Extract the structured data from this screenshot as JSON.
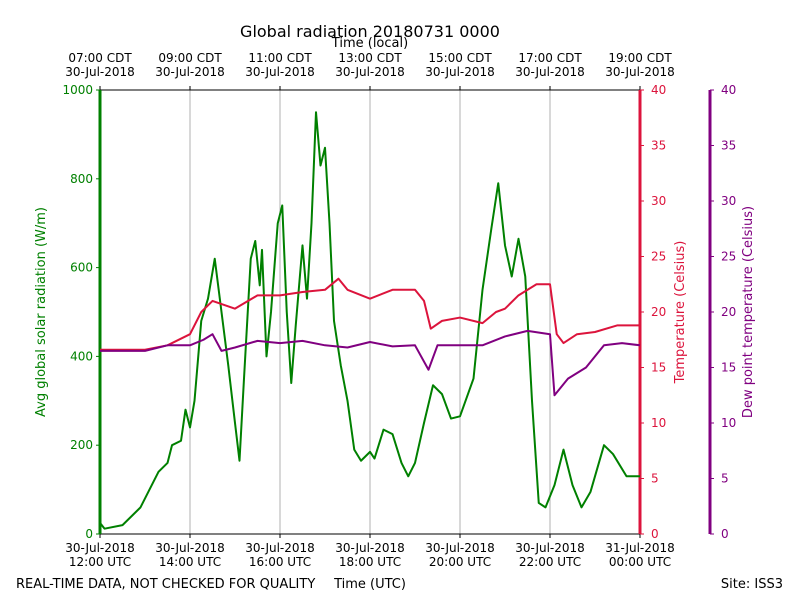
{
  "chart_data": {
    "type": "line",
    "title": "Global radiation 20180731 0000",
    "x2label": "Time (local)",
    "xlabel": "Time (UTC)",
    "ylabel": "Avg global solar radiation (W/m)",
    "y2label": "Temperature (Celsius)",
    "y3label": "Dew point temperature (Celsius)",
    "footer_left": "REAL-TIME DATA, NOT CHECKED FOR QUALITY",
    "footer_right": "Site: ISS3",
    "grid": true,
    "xlim": [
      12,
      24
    ],
    "xticks": [
      {
        "value": 12,
        "label": "30-Jul-2018\n12:00 UTC"
      },
      {
        "value": 14,
        "label": "30-Jul-2018\n14:00 UTC"
      },
      {
        "value": 16,
        "label": "30-Jul-2018\n16:00 UTC"
      },
      {
        "value": 18,
        "label": "30-Jul-2018\n18:00 UTC"
      },
      {
        "value": 20,
        "label": "30-Jul-2018\n20:00 UTC"
      },
      {
        "value": 22,
        "label": "30-Jul-2018\n22:00 UTC"
      },
      {
        "value": 24,
        "label": "31-Jul-2018\n00:00 UTC"
      }
    ],
    "x2ticks": [
      {
        "value": 12,
        "label": "07:00 CDT\n30-Jul-2018"
      },
      {
        "value": 14,
        "label": "09:00 CDT\n30-Jul-2018"
      },
      {
        "value": 16,
        "label": "11:00 CDT\n30-Jul-2018"
      },
      {
        "value": 18,
        "label": "13:00 CDT\n30-Jul-2018"
      },
      {
        "value": 20,
        "label": "15:00 CDT\n30-Jul-2018"
      },
      {
        "value": 22,
        "label": "17:00 CDT\n30-Jul-2018"
      },
      {
        "value": 24,
        "label": "19:00 CDT\n30-Jul-2018"
      }
    ],
    "ylim": [
      0,
      1000
    ],
    "yticks": [
      0,
      200,
      400,
      600,
      800,
      1000
    ],
    "y2lim": [
      0,
      40
    ],
    "y2ticks": [
      0,
      5,
      10,
      15,
      20,
      25,
      30,
      35,
      40
    ],
    "y3lim": [
      0,
      40
    ],
    "y3ticks": [
      0,
      5,
      10,
      15,
      20,
      25,
      30,
      35,
      40
    ],
    "series": [
      {
        "name": "Avg global solar radiation",
        "color": "#008000",
        "axis": "y",
        "x": [
          12.0,
          12.1,
          12.5,
          12.9,
          13.3,
          13.5,
          13.6,
          13.8,
          13.9,
          14.0,
          14.1,
          14.25,
          14.4,
          14.55,
          14.7,
          14.85,
          15.0,
          15.1,
          15.2,
          15.35,
          15.45,
          15.55,
          15.6,
          15.7,
          15.8,
          15.95,
          16.05,
          16.15,
          16.25,
          16.35,
          16.5,
          16.6,
          16.7,
          16.8,
          16.9,
          17.0,
          17.1,
          17.2,
          17.35,
          17.5,
          17.65,
          17.8,
          18.0,
          18.1,
          18.3,
          18.5,
          18.7,
          18.85,
          19.0,
          19.2,
          19.4,
          19.6,
          19.8,
          20.0,
          20.3,
          20.5,
          20.7,
          20.85,
          21.0,
          21.15,
          21.3,
          21.45,
          21.6,
          21.75,
          21.9,
          22.1,
          22.3,
          22.5,
          22.7,
          22.9,
          23.2,
          23.4,
          23.7,
          24.0
        ],
        "values": [
          25,
          12,
          20,
          60,
          140,
          160,
          200,
          210,
          280,
          240,
          300,
          480,
          530,
          620,
          500,
          380,
          250,
          165,
          350,
          620,
          660,
          560,
          640,
          400,
          500,
          700,
          740,
          500,
          340,
          470,
          650,
          530,
          700,
          950,
          830,
          870,
          700,
          480,
          380,
          300,
          190,
          165,
          185,
          170,
          235,
          225,
          160,
          130,
          160,
          250,
          335,
          315,
          260,
          265,
          350,
          550,
          690,
          790,
          650,
          580,
          665,
          580,
          300,
          70,
          60,
          110,
          190,
          110,
          60,
          95,
          200,
          180,
          130,
          130
        ]
      },
      {
        "name": "Temperature",
        "color": "#dc143c",
        "axis": "y2",
        "x": [
          12,
          13,
          13.5,
          14,
          14.25,
          14.5,
          15.0,
          15.5,
          16.0,
          16.5,
          17.0,
          17.3,
          17.5,
          18.0,
          18.5,
          19.0,
          19.2,
          19.35,
          19.6,
          20.0,
          20.5,
          20.8,
          21.0,
          21.3,
          21.7,
          22.0,
          22.15,
          22.3,
          22.6,
          23.0,
          23.5,
          24
        ],
        "values": [
          16.6,
          16.6,
          17.0,
          18.0,
          20.0,
          21.0,
          20.3,
          21.5,
          21.5,
          21.8,
          22.0,
          23.0,
          22.0,
          21.2,
          22.0,
          22.0,
          21.0,
          18.5,
          19.2,
          19.5,
          19.0,
          20.0,
          20.3,
          21.5,
          22.5,
          22.5,
          18.0,
          17.2,
          18.0,
          18.2,
          18.8,
          18.8
        ]
      },
      {
        "name": "Dew point temperature",
        "color": "#800080",
        "axis": "y3",
        "x": [
          12,
          13,
          13.5,
          14,
          14.3,
          14.5,
          14.7,
          15,
          15.5,
          16,
          16.5,
          17,
          17.5,
          18.0,
          18.5,
          19.0,
          19.3,
          19.5,
          20,
          20.5,
          21.0,
          21.5,
          22.0,
          22.1,
          22.4,
          22.8,
          23.2,
          23.6,
          24
        ],
        "values": [
          16.5,
          16.5,
          17.0,
          17.0,
          17.5,
          18.0,
          16.5,
          16.8,
          17.4,
          17.2,
          17.4,
          17.0,
          16.8,
          17.3,
          16.9,
          17.0,
          14.8,
          17.0,
          17.0,
          17.0,
          17.8,
          18.3,
          18.0,
          12.5,
          14.0,
          15.0,
          17.0,
          17.2,
          17.0
        ]
      }
    ]
  }
}
